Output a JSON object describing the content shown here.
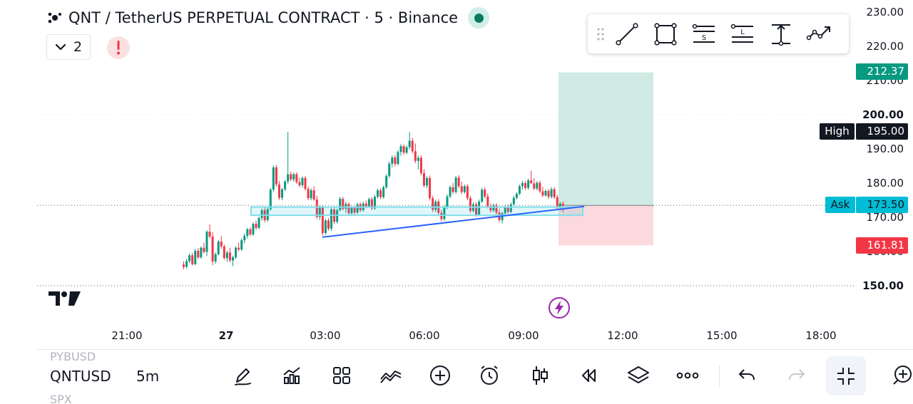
{
  "header": {
    "title": "QNT / TetherUS PERPETUAL CONTRACT · 5 · Binance",
    "indicators_count": "2"
  },
  "colors": {
    "up": "#089981",
    "down": "#f23645",
    "target_zone": "#cfeae3",
    "stop_zone": "#fbd9dc",
    "trendline": "#2962ff",
    "ask": "#00bcd4"
  },
  "icons": {
    "draw_toolbar": [
      "grip-icon",
      "trend-line-icon",
      "rectangle-icon",
      "sell-line-icon",
      "long-position-icon",
      "vertical-measure-icon",
      "path-icon"
    ],
    "bottom_bar": [
      "brush-icon",
      "indicators-icon",
      "layouts-icon",
      "compare-icon",
      "add-icon",
      "alert-clock-icon",
      "candles-icon",
      "replay-icon",
      "layers-icon",
      "more-icon",
      "undo-icon",
      "redo-icon",
      "fullscreen-exit-icon",
      "zoom-in-icon"
    ]
  },
  "price_axis": {
    "ticks": [
      "230.00",
      "220.00",
      "210.00",
      "200.00",
      "190.00",
      "180.00",
      "170.00",
      "160.00",
      "150.00"
    ],
    "bold_ticks": [
      "200.00",
      "150.00"
    ]
  },
  "time_axis": {
    "ticks": [
      "21:00",
      "27",
      "03:00",
      "06:00",
      "09:00",
      "12:00",
      "15:00",
      "18:00"
    ],
    "bold_ticks": [
      "27"
    ]
  },
  "price_labels": {
    "target": "212.37",
    "high_name": "High",
    "high_value": "195.00",
    "ask_name": "Ask",
    "ask_value": "173.50",
    "stop": "161.81"
  },
  "bottom_bar": {
    "symbol_prev": "PYBUSD",
    "symbol_current": "QNTUSD",
    "symbol_next": "SPX",
    "interval": "5m"
  },
  "chart_data": {
    "type": "candlestick",
    "symbol": "QNT / TetherUS PERPETUAL CONTRACT",
    "interval": "5",
    "exchange": "Binance",
    "ylim": [
      147,
      234
    ],
    "candles_ohlc": [
      [
        156.2,
        157.1,
        154.8,
        155.5
      ],
      [
        155.5,
        157.8,
        155.1,
        157.2
      ],
      [
        157.2,
        159.4,
        156.6,
        158.9
      ],
      [
        158.9,
        159.6,
        155.9,
        156.3
      ],
      [
        156.3,
        160.8,
        156.0,
        160.2
      ],
      [
        160.2,
        161.0,
        157.8,
        158.3
      ],
      [
        158.3,
        161.5,
        157.9,
        161.1
      ],
      [
        161.1,
        162.6,
        159.5,
        159.9
      ],
      [
        159.9,
        166.2,
        158.7,
        165.8
      ],
      [
        165.8,
        167.9,
        163.9,
        164.4
      ],
      [
        164.4,
        165.7,
        156.0,
        157.1
      ],
      [
        157.1,
        159.8,
        156.5,
        159.2
      ],
      [
        159.2,
        163.4,
        158.8,
        162.9
      ],
      [
        162.9,
        164.5,
        160.9,
        161.5
      ],
      [
        161.5,
        162.0,
        157.6,
        158.1
      ],
      [
        158.1,
        160.2,
        157.0,
        159.7
      ],
      [
        159.7,
        161.1,
        156.9,
        157.4
      ],
      [
        157.4,
        158.8,
        155.7,
        158.3
      ],
      [
        158.3,
        161.5,
        157.8,
        161.1
      ],
      [
        161.1,
        162.6,
        160.1,
        160.6
      ],
      [
        160.6,
        163.8,
        160.1,
        163.3
      ],
      [
        163.3,
        165.2,
        162.4,
        164.6
      ],
      [
        164.6,
        166.9,
        163.8,
        166.5
      ],
      [
        166.5,
        167.1,
        164.5,
        165.0
      ],
      [
        165.0,
        168.5,
        164.6,
        168.1
      ],
      [
        168.1,
        169.0,
        166.3,
        166.9
      ],
      [
        166.9,
        170.2,
        166.5,
        169.8
      ],
      [
        169.8,
        172.6,
        169.0,
        172.1
      ],
      [
        172.1,
        172.9,
        168.5,
        169.2
      ],
      [
        169.2,
        172.8,
        168.7,
        172.4
      ],
      [
        172.4,
        178.6,
        171.9,
        178.1
      ],
      [
        178.1,
        185.2,
        177.4,
        184.6
      ],
      [
        184.6,
        185.3,
        179.0,
        179.6
      ],
      [
        179.6,
        180.6,
        175.1,
        175.7
      ],
      [
        175.7,
        178.6,
        175.0,
        178.2
      ],
      [
        178.2,
        180.9,
        177.6,
        180.5
      ],
      [
        180.5,
        195.0,
        179.8,
        182.6
      ],
      [
        182.6,
        183.4,
        180.6,
        181.1
      ],
      [
        181.1,
        183.1,
        180.4,
        182.6
      ],
      [
        182.6,
        183.2,
        179.8,
        180.3
      ],
      [
        180.3,
        181.6,
        178.8,
        179.4
      ],
      [
        179.4,
        182.0,
        178.7,
        181.5
      ],
      [
        181.5,
        182.1,
        177.8,
        178.3
      ],
      [
        178.3,
        179.0,
        175.0,
        175.6
      ],
      [
        175.6,
        178.5,
        175.0,
        177.9
      ],
      [
        177.9,
        179.1,
        174.8,
        175.2
      ],
      [
        175.2,
        176.3,
        169.5,
        170.1
      ],
      [
        170.1,
        173.6,
        169.2,
        172.9
      ],
      [
        172.9,
        173.5,
        164.6,
        165.4
      ],
      [
        165.4,
        169.6,
        164.9,
        169.1
      ],
      [
        169.1,
        169.8,
        166.1,
        166.7
      ],
      [
        166.7,
        172.8,
        166.0,
        172.3
      ],
      [
        172.3,
        172.9,
        168.1,
        168.7
      ],
      [
        168.7,
        172.6,
        168.2,
        172.1
      ],
      [
        172.1,
        176.0,
        171.7,
        175.4
      ],
      [
        175.4,
        176.0,
        172.0,
        172.5
      ],
      [
        172.5,
        174.6,
        171.3,
        173.9
      ],
      [
        173.9,
        174.4,
        170.6,
        171.2
      ],
      [
        171.2,
        173.3,
        170.8,
        172.8
      ],
      [
        172.8,
        173.3,
        170.8,
        171.4
      ],
      [
        171.4,
        174.3,
        171.0,
        173.8
      ],
      [
        173.8,
        174.4,
        171.5,
        172.1
      ],
      [
        172.1,
        174.6,
        171.6,
        174.0
      ],
      [
        174.0,
        174.9,
        172.6,
        173.2
      ],
      [
        173.2,
        175.8,
        172.9,
        175.3
      ],
      [
        175.3,
        175.9,
        172.1,
        172.6
      ],
      [
        172.6,
        176.6,
        172.2,
        176.0
      ],
      [
        176.0,
        178.4,
        175.5,
        177.9
      ],
      [
        177.9,
        178.5,
        175.3,
        175.9
      ],
      [
        175.9,
        179.3,
        175.4,
        178.8
      ],
      [
        178.8,
        182.6,
        178.3,
        182.1
      ],
      [
        182.1,
        186.3,
        181.5,
        185.7
      ],
      [
        185.7,
        188.1,
        184.6,
        187.5
      ],
      [
        187.5,
        188.2,
        184.9,
        185.6
      ],
      [
        185.6,
        189.6,
        185.2,
        189.1
      ],
      [
        189.1,
        191.4,
        188.0,
        190.8
      ],
      [
        190.8,
        191.3,
        188.3,
        188.9
      ],
      [
        188.9,
        191.0,
        188.5,
        190.5
      ],
      [
        190.5,
        195.0,
        189.9,
        192.4
      ],
      [
        192.4,
        193.3,
        188.7,
        189.3
      ],
      [
        189.3,
        191.6,
        185.8,
        186.5
      ],
      [
        186.5,
        188.0,
        184.0,
        187.4
      ],
      [
        187.4,
        188.1,
        182.3,
        182.9
      ],
      [
        182.9,
        184.1,
        178.7,
        179.3
      ],
      [
        179.3,
        182.0,
        178.5,
        181.5
      ],
      [
        181.5,
        182.2,
        174.9,
        175.6
      ],
      [
        175.6,
        176.3,
        171.6,
        172.2
      ],
      [
        172.2,
        175.1,
        171.5,
        174.6
      ],
      [
        174.6,
        175.3,
        170.7,
        171.3
      ],
      [
        171.3,
        172.2,
        168.8,
        169.5
      ],
      [
        169.5,
        173.5,
        169.0,
        172.9
      ],
      [
        172.9,
        176.7,
        172.4,
        176.1
      ],
      [
        176.1,
        179.3,
        175.6,
        178.8
      ],
      [
        178.8,
        180.1,
        176.8,
        177.4
      ],
      [
        177.4,
        182.1,
        176.9,
        181.6
      ],
      [
        181.6,
        182.3,
        178.5,
        179.1
      ],
      [
        179.1,
        180.4,
        176.8,
        177.4
      ],
      [
        177.4,
        179.6,
        176.9,
        179.1
      ],
      [
        179.1,
        179.7,
        175.0,
        175.6
      ],
      [
        175.6,
        176.3,
        171.3,
        171.9
      ],
      [
        171.9,
        174.4,
        171.4,
        173.8
      ],
      [
        173.8,
        174.5,
        170.2,
        170.8
      ],
      [
        170.8,
        175.2,
        170.3,
        174.6
      ],
      [
        174.6,
        178.6,
        174.2,
        178.1
      ],
      [
        178.1,
        178.8,
        175.5,
        176.1
      ],
      [
        176.1,
        177.0,
        172.6,
        173.2
      ],
      [
        173.2,
        174.0,
        171.4,
        172.0
      ],
      [
        172.0,
        174.1,
        171.5,
        173.5
      ],
      [
        173.5,
        174.1,
        170.8,
        171.4
      ],
      [
        171.4,
        172.5,
        168.6,
        169.2
      ],
      [
        169.2,
        171.7,
        168.2,
        171.2
      ],
      [
        171.2,
        173.6,
        170.7,
        173.0
      ],
      [
        173.0,
        173.8,
        171.0,
        171.6
      ],
      [
        171.6,
        174.3,
        171.2,
        173.8
      ],
      [
        173.8,
        176.3,
        173.3,
        175.7
      ],
      [
        175.7,
        177.3,
        175.2,
        176.9
      ],
      [
        176.9,
        179.6,
        176.5,
        179.1
      ],
      [
        179.1,
        180.6,
        178.1,
        180.0
      ],
      [
        180.0,
        180.6,
        178.0,
        178.6
      ],
      [
        178.6,
        181.3,
        178.1,
        180.8
      ],
      [
        180.8,
        183.6,
        180.3,
        179.9
      ],
      [
        179.9,
        181.4,
        177.9,
        178.4
      ],
      [
        178.4,
        180.6,
        177.9,
        180.1
      ],
      [
        180.1,
        180.7,
        177.1,
        177.6
      ],
      [
        177.6,
        178.9,
        175.9,
        176.4
      ],
      [
        176.4,
        178.2,
        176.0,
        177.7
      ],
      [
        177.7,
        178.3,
        175.4,
        176.0
      ],
      [
        176.0,
        178.8,
        175.5,
        178.2
      ],
      [
        178.2,
        178.8,
        175.4,
        175.9
      ],
      [
        175.9,
        176.6,
        172.2,
        172.9
      ],
      [
        172.9,
        174.5,
        172.0,
        174.0
      ],
      [
        174.0,
        174.6,
        171.5,
        173.5
      ]
    ],
    "annotations": {
      "long_position": {
        "entry": 173.5,
        "target": 212.37,
        "stop": 161.81
      },
      "support_rectangle": {
        "top": 173.0,
        "bottom": 170.6
      },
      "trendline": {
        "from": 164.2,
        "to": 173.2
      }
    }
  }
}
